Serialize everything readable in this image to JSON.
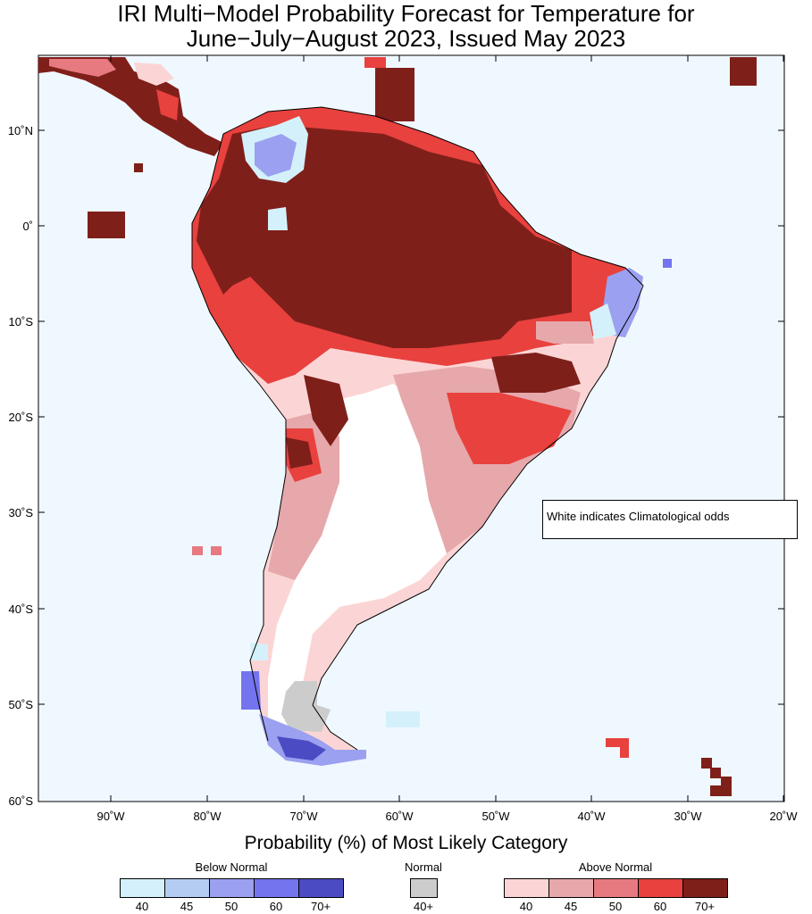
{
  "title": {
    "line1": "IRI Multi−Model Probability Forecast for Temperature for",
    "line2": "June−July−August 2023, Issued May 2023"
  },
  "map": {
    "ocean_color": "#f0f8ff",
    "lat_labels": [
      "10˚N",
      "0˚",
      "10˚S",
      "20˚S",
      "30˚S",
      "40˚S",
      "50˚S",
      "60˚S"
    ],
    "lon_labels": [
      "90˚W",
      "80˚W",
      "70˚W",
      "60˚W",
      "50˚W",
      "40˚W",
      "30˚W",
      "20˚W"
    ],
    "note": "White indicates Climatological odds"
  },
  "legend": {
    "title": "Probability (%) of Most Likely Category",
    "below": {
      "title": "Below Normal",
      "levels": [
        "40",
        "45",
        "50",
        "60",
        "70+"
      ],
      "colors": [
        "#d4f1fb",
        "#b5ccf2",
        "#9ba0f0",
        "#7474ee",
        "#4b4bc4"
      ]
    },
    "normal": {
      "title": "Normal",
      "levels": [
        "40+"
      ],
      "colors": [
        "#cccccc"
      ]
    },
    "above": {
      "title": "Above Normal",
      "levels": [
        "40",
        "45",
        "50",
        "60",
        "70+"
      ],
      "colors": [
        "#fbd5d5",
        "#e6a8ab",
        "#e67a80",
        "#e8413e",
        "#7f1f1a"
      ]
    }
  }
}
